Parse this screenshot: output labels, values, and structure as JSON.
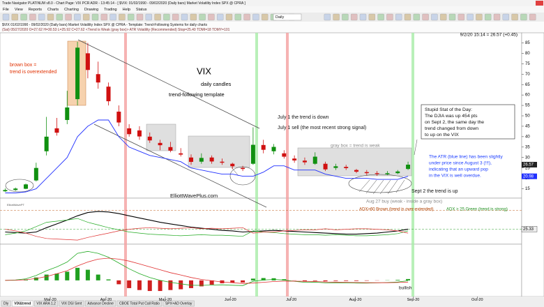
{
  "window": {
    "title": "Trade Navigator PLATINUM v8.0 - Chart Page: VIX PCR ADR - 13:45:14 - [ $VIX: 01/02/1990 - 09/02/2020 (Daily bars) Market Volatility Index SPX @ CPRA ]",
    "menu": [
      "File",
      "View",
      "Reports",
      "Charts",
      "Charting",
      "Drawing",
      "Trading",
      "Help",
      "Status"
    ],
    "toolbar": {
      "period": "Daily"
    },
    "info": [
      "$VIX  01/02/1990 - 09/02/2020 (Daily bars)  Market Volatility Index SPX @ CPRA  -  Template: Trend-Following Systems for daily charts",
      "(Sat) 05/27/2020 O=27.62 H=30.53 L=25.92 C=27.62 <Trend is Weak (gray box)> ATR Volatility (Recommended) Stop=25.40 TDMI=18 TDMY=101"
    ],
    "tabs": [
      "Dly",
      "VIX&trend",
      "VIX ARA 1.2",
      "VIX DSI Sent",
      "Advance Decline",
      "CBOE Total Put Call Ratio",
      "SPX+AD Overlay"
    ]
  },
  "chart_data": {
    "type": "candlestick",
    "title": "VIX",
    "subtitle": "daily candles",
    "template": "trend-following template",
    "quote": "9/2/20 15:14 = 26.57 (+0.45)",
    "watermark": "ElliottWavePT",
    "open": [
      13.8,
      14.4,
      15.0,
      19.0,
      33.0,
      44.0,
      48.0,
      58.0,
      80.0,
      70.0,
      64.0,
      52.0,
      44.0,
      43.0,
      40.0,
      37.0,
      35.0,
      32.0,
      30.0,
      28.0,
      30.0,
      28.0,
      27.0,
      25.0,
      27.0,
      36.0,
      33.0,
      32.0,
      29.5,
      28.5,
      27.0,
      27.0,
      25.0,
      25.5,
      24.0,
      23.0,
      22.5,
      22.0,
      22.5,
      24.5
    ],
    "high": [
      15.2,
      15.6,
      17.5,
      27.5,
      49.5,
      49.0,
      62.0,
      85.5,
      85.0,
      76.0,
      66.0,
      55.0,
      46.0,
      45.0,
      42.0,
      38.5,
      37.5,
      34.5,
      31.5,
      32.0,
      31.0,
      29.5,
      27.5,
      26.0,
      44.5,
      38.5,
      36.5,
      33.5,
      31.0,
      30.0,
      32.5,
      28.0,
      27.0,
      26.5,
      24.5,
      24.0,
      23.5,
      23.5,
      24.0,
      28.0
    ],
    "low": [
      13.5,
      14.0,
      14.8,
      18.5,
      31.0,
      40.5,
      46.0,
      55.0,
      68.0,
      63.0,
      55.0,
      45.0,
      40.0,
      38.5,
      37.0,
      33.5,
      32.5,
      30.5,
      26.5,
      27.0,
      27.0,
      26.5,
      24.5,
      23.5,
      26.5,
      32.0,
      31.5,
      29.5,
      27.5,
      26.5,
      26.5,
      23.5,
      24.0,
      24.0,
      22.5,
      21.5,
      21.2,
      21.5,
      22.0,
      24.0
    ],
    "close": [
      14.4,
      15.1,
      17.1,
      25.0,
      40.0,
      41.9,
      54.0,
      82.7,
      72.0,
      66.0,
      57.0,
      46.8,
      41.2,
      40.1,
      38.2,
      35.9,
      33.3,
      31.4,
      27.9,
      29.8,
      28.1,
      27.5,
      25.8,
      24.5,
      36.1,
      33.7,
      35.1,
      30.4,
      28.6,
      27.7,
      30.4,
      24.3,
      25.8,
      24.9,
      23.2,
      22.5,
      22.1,
      22.5,
      23.3,
      26.57
    ],
    "atr_stop": {
      "color": "#2030ff",
      "values": [
        13,
        13,
        13.5,
        15,
        20,
        25,
        30,
        40,
        45,
        48,
        48,
        40,
        35,
        33,
        31,
        30,
        29,
        28,
        25,
        24,
        23,
        22,
        22,
        21,
        21,
        23,
        26,
        26,
        24,
        24,
        24,
        22,
        21,
        20,
        20,
        20,
        19.5,
        19.5,
        19.5,
        20.98
      ]
    },
    "xlim": [
      -0.5,
      50
    ],
    "xticks": [
      {
        "value": 4.36,
        "label": "Mar-20"
      },
      {
        "value": 9.76,
        "label": "Apr-20"
      },
      {
        "value": 15.5,
        "label": "May-20"
      },
      {
        "value": 21.8,
        "label": "Jun-20"
      },
      {
        "value": 27.7,
        "label": "Jul-20"
      },
      {
        "value": 33.9,
        "label": "Aug-20"
      },
      {
        "value": 39.5,
        "label": "Sep-20"
      },
      {
        "value": 45.7,
        "label": "Oct-20"
      }
    ],
    "ylim": [
      10.5,
      89.5
    ],
    "yticks": [
      15,
      20,
      25,
      30,
      35,
      40,
      45,
      50,
      55,
      60,
      65,
      70,
      75,
      80,
      85
    ],
    "annotations": [
      "brown box =",
      "trend is overextended",
      "July 1 the trend is down",
      "July 1 sell (the most recent strong signal)",
      "gray box = trend is weak",
      "Stupid Stat of the Day:",
      "The DJIA was up 454 pts",
      "on Sept 2, the same day the",
      "trend changed from down",
      "to up on the VIX",
      "The ATR (blue line) has been slightly",
      "under price since August 3 (!!!),",
      "indicating that an upward pop",
      "in the VIX is well overdue.",
      "Sept 2 the trend is up",
      "Aug 27 buy (weak - inside a gray box)",
      "ElliottWavePlus.com",
      "ADX>60 Brown (trend is over-extended)",
      "ADX > 25 Green (trend is strong)",
      "bullish"
    ],
    "adx": {
      "ylim": [
        0,
        80
      ],
      "levels": [
        60,
        25
      ],
      "series": [
        {
          "color": "#000000",
          "values": [
            20,
            19,
            18,
            20,
            28,
            35,
            42,
            50,
            56,
            58,
            57,
            54,
            50,
            46,
            42,
            38,
            35,
            32,
            29,
            27,
            25,
            23,
            22,
            20,
            21,
            22,
            23,
            22,
            21,
            20,
            19,
            18,
            17,
            16,
            16,
            17,
            18,
            20,
            22,
            25.33
          ]
        },
        {
          "color": "#22aa22",
          "values": [
            15,
            18,
            22,
            30,
            38,
            40,
            42,
            45,
            38,
            33,
            28,
            24,
            20,
            18,
            16,
            15,
            14,
            13,
            14,
            15,
            14,
            14,
            13,
            12,
            22,
            20,
            19,
            17,
            16,
            15,
            15,
            14,
            15,
            14,
            13,
            13,
            14,
            15,
            17,
            22
          ]
        },
        {
          "color": "#e03030",
          "values": [
            25,
            22,
            18,
            12,
            8,
            7,
            6,
            5,
            10,
            14,
            18,
            22,
            25,
            27,
            28,
            27,
            26,
            27,
            28,
            26,
            27,
            26,
            27,
            28,
            18,
            20,
            20,
            22,
            23,
            24,
            24,
            26,
            24,
            25,
            26,
            26,
            25,
            24,
            22,
            18
          ]
        }
      ]
    },
    "macd": {
      "ylim": [
        -8,
        18
      ],
      "hist": [
        0,
        0.1,
        0.5,
        1.5,
        3,
        3.5,
        4.5,
        6.5,
        5.5,
        3,
        0.5,
        -2,
        -4,
        -5,
        -5.5,
        -5.5,
        -5,
        -4.6,
        -4,
        -3.1,
        -2.2,
        -1.5,
        -1.3,
        -1.1,
        0.9,
        1.2,
        1.1,
        0.6,
        -0.1,
        -0.5,
        -0.3,
        -0.5,
        -0.3,
        -0.3,
        -0.3,
        -0.2,
        -0.1,
        0.1,
        0.3,
        0.7
      ],
      "series": [
        {
          "color": "#22aa22",
          "values": [
            0,
            0.2,
            0.8,
            2.5,
            5,
            7,
            9.5,
            14,
            15,
            14,
            12,
            9,
            6,
            3.5,
            1.5,
            0,
            -1,
            -1.8,
            -2.5,
            -2.6,
            -2.4,
            -2.3,
            -2.5,
            -2.7,
            -0.5,
            0.2,
            0.5,
            0.2,
            -0.5,
            -1,
            -0.9,
            -1.3,
            -1.2,
            -1.3,
            -1.4,
            -1.4,
            -1.3,
            -1.1,
            -0.8,
            -0.2
          ]
        },
        {
          "color": "#e03030",
          "values": [
            0,
            0.1,
            0.3,
            1,
            2,
            3.5,
            5,
            7.5,
            9.5,
            11,
            11.5,
            11,
            10,
            8.5,
            7,
            5.5,
            4,
            2.8,
            1.5,
            0.5,
            -0.2,
            -0.8,
            -1.2,
            -1.6,
            -1.4,
            -1,
            -0.6,
            -0.4,
            -0.4,
            -0.5,
            -0.6,
            -0.8,
            -0.9,
            -1,
            -1.1,
            -1.2,
            -1.2,
            -1.2,
            -1.1,
            -0.9
          ]
        }
      ]
    }
  }
}
